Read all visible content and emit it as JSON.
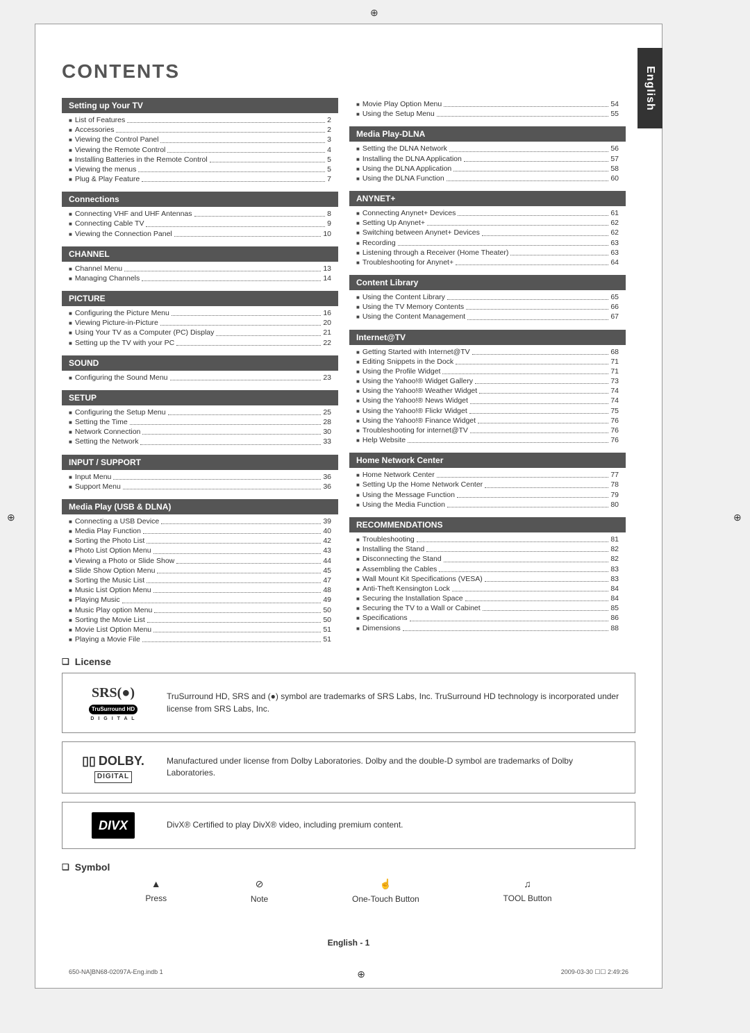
{
  "meta": {
    "title": "CONTENTS",
    "language_tab": "English",
    "page_footer": "English - 1",
    "print_footer_left": "650-NA]BN68-02097A-Eng.indb   1",
    "print_footer_right": "2009-03-30   ☐☐ 2:49:26"
  },
  "left_sections": [
    {
      "title": "Setting up Your TV",
      "items": [
        {
          "label": "List of Features",
          "page": "2"
        },
        {
          "label": "Accessories",
          "page": "2"
        },
        {
          "label": "Viewing the Control Panel",
          "page": "3"
        },
        {
          "label": "Viewing the Remote Control",
          "page": "4"
        },
        {
          "label": "Installing Batteries in the Remote Control",
          "page": "5"
        },
        {
          "label": "Viewing the menus",
          "page": "5"
        },
        {
          "label": "Plug & Play Feature",
          "page": "7"
        }
      ]
    },
    {
      "title": "Connections",
      "items": [
        {
          "label": "Connecting VHF and UHF Antennas",
          "page": "8"
        },
        {
          "label": "Connecting Cable TV",
          "page": "9"
        },
        {
          "label": "Viewing the Connection Panel",
          "page": "10"
        }
      ]
    },
    {
      "title": "CHANNEL",
      "items": [
        {
          "label": "Channel Menu",
          "page": "13"
        },
        {
          "label": "Managing Channels",
          "page": "14"
        }
      ]
    },
    {
      "title": "PICTURE",
      "items": [
        {
          "label": "Configuring the Picture Menu",
          "page": "16"
        },
        {
          "label": "Viewing Picture-in-Picture",
          "page": "20"
        },
        {
          "label": "Using Your TV as a Computer (PC) Display",
          "page": "21"
        },
        {
          "label": "Setting up the TV with your PC",
          "page": "22"
        }
      ]
    },
    {
      "title": "SOUND",
      "items": [
        {
          "label": "Configuring the Sound Menu",
          "page": "23"
        }
      ]
    },
    {
      "title": "SETUP",
      "items": [
        {
          "label": "Configuring the Setup Menu",
          "page": "25"
        },
        {
          "label": "Setting the Time",
          "page": "28"
        },
        {
          "label": "Network Connection",
          "page": "30"
        },
        {
          "label": "Setting the Network",
          "page": "33"
        }
      ]
    },
    {
      "title": "INPUT / SUPPORT",
      "items": [
        {
          "label": "Input Menu",
          "page": "36"
        },
        {
          "label": "Support Menu",
          "page": "36"
        }
      ]
    },
    {
      "title": "Media Play (USB & DLNA)",
      "items": [
        {
          "label": "Connecting a USB Device",
          "page": "39"
        },
        {
          "label": "Media Play Function",
          "page": "40"
        },
        {
          "label": "Sorting the Photo List",
          "page": "42"
        },
        {
          "label": "Photo List Option Menu",
          "page": "43"
        },
        {
          "label": "Viewing a Photo or Slide Show",
          "page": "44"
        },
        {
          "label": "Slide Show Option Menu",
          "page": "45"
        },
        {
          "label": "Sorting the Music List",
          "page": "47"
        },
        {
          "label": "Music List Option Menu",
          "page": "48"
        },
        {
          "label": "Playing Music",
          "page": "49"
        },
        {
          "label": "Music Play option Menu",
          "page": "50"
        },
        {
          "label": "Sorting the Movie List",
          "page": "50"
        },
        {
          "label": "Movie List Option Menu",
          "page": "51"
        },
        {
          "label": "Playing a Movie File",
          "page": "51"
        }
      ]
    }
  ],
  "right_top_items": [
    {
      "label": "Movie Play Option Menu",
      "page": "54"
    },
    {
      "label": "Using the Setup Menu",
      "page": "55"
    }
  ],
  "right_sections": [
    {
      "title": "Media Play-DLNA",
      "items": [
        {
          "label": "Setting the DLNA Network",
          "page": "56"
        },
        {
          "label": "Installing the DLNA Application",
          "page": "57"
        },
        {
          "label": "Using the DLNA Application",
          "page": "58"
        },
        {
          "label": "Using the DLNA Function",
          "page": "60"
        }
      ]
    },
    {
      "title": "ANYNET+",
      "items": [
        {
          "label": "Connecting Anynet+ Devices",
          "page": "61"
        },
        {
          "label": "Setting Up Anynet+",
          "page": "62"
        },
        {
          "label": "Switching between Anynet+ Devices",
          "page": "62"
        },
        {
          "label": "Recording",
          "page": "63"
        },
        {
          "label": "Listening through a Receiver (Home Theater)",
          "page": "63"
        },
        {
          "label": "Troubleshooting for Anynet+",
          "page": "64"
        }
      ]
    },
    {
      "title": "Content Library",
      "items": [
        {
          "label": "Using the Content Library",
          "page": "65"
        },
        {
          "label": "Using the TV Memory Contents",
          "page": "66"
        },
        {
          "label": "Using the Content Management",
          "page": "67"
        }
      ]
    },
    {
      "title": "Internet@TV",
      "items": [
        {
          "label": "Getting Started with Internet@TV",
          "page": "68"
        },
        {
          "label": "Editing Snippets in the Dock",
          "page": "71"
        },
        {
          "label": "Using the Profile Widget",
          "page": "71"
        },
        {
          "label": "Using the Yahoo!® Widget Gallery",
          "page": "73"
        },
        {
          "label": "Using the Yahoo!® Weather Widget",
          "page": "74"
        },
        {
          "label": "Using the Yahoo!® News Widget",
          "page": "74"
        },
        {
          "label": "Using the Yahoo!® Flickr Widget",
          "page": "75"
        },
        {
          "label": "Using the Yahoo!® Finance Widget",
          "page": "76"
        },
        {
          "label": "Troubleshooting for internet@TV",
          "page": "76"
        },
        {
          "label": "Help Website",
          "page": "76"
        }
      ]
    },
    {
      "title": "Home Network Center",
      "items": [
        {
          "label": "Home Network Center",
          "page": "77"
        },
        {
          "label": "Setting Up the Home Network Center",
          "page": "78"
        },
        {
          "label": "Using the Message Function",
          "page": "79"
        },
        {
          "label": "Using the Media Function",
          "page": "80"
        }
      ]
    },
    {
      "title": "RECOMMENDATIONS",
      "items": [
        {
          "label": "Troubleshooting",
          "page": "81"
        },
        {
          "label": "Installing the Stand",
          "page": "82"
        },
        {
          "label": "Disconnecting the Stand",
          "page": "82"
        },
        {
          "label": "Assembling the Cables",
          "page": "83"
        },
        {
          "label": "Wall Mount Kit Specifications (VESA)",
          "page": "83"
        },
        {
          "label": "Anti-Theft Kensington Lock",
          "page": "84"
        },
        {
          "label": "Securing the Installation Space",
          "page": "84"
        },
        {
          "label": "Securing the TV to a Wall or Cabinet",
          "page": "85"
        },
        {
          "label": "Specifications",
          "page": "86"
        },
        {
          "label": "Dimensions",
          "page": "88"
        }
      ]
    }
  ],
  "license": {
    "heading": "License",
    "boxes": [
      {
        "logo": "srs",
        "text": "TruSurround HD, SRS and (●) symbol are trademarks of SRS Labs, Inc. TruSurround HD technology is incorporated under license from SRS Labs, Inc."
      },
      {
        "logo": "dolby",
        "text": "Manufactured under license from Dolby Laboratories. Dolby and the double-D symbol are trademarks of Dolby Laboratories."
      },
      {
        "logo": "divx",
        "text": "DivX® Certified to play DivX® video, including premium content."
      }
    ]
  },
  "symbol": {
    "heading": "Symbol",
    "items": [
      {
        "icon": "▲",
        "label": "Press"
      },
      {
        "icon": "⊘",
        "label": "Note"
      },
      {
        "icon": "☝",
        "label": "One-Touch Button"
      },
      {
        "icon": "♫",
        "label": "TOOL Button"
      }
    ]
  }
}
